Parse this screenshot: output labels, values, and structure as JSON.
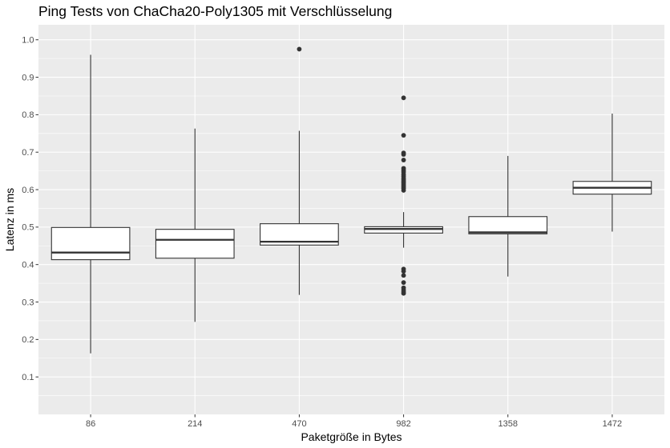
{
  "chart_data": {
    "type": "boxplot",
    "title": "Ping Tests von ChaCha20-Poly1305 mit Verschlüsselung",
    "xlabel": "Paketgröße in Bytes",
    "ylabel": "Latenz in ms",
    "ylim": [
      0.0,
      1.04
    ],
    "yticks": [
      0.1,
      0.2,
      0.3,
      0.4,
      0.5,
      0.6,
      0.7,
      0.8,
      0.9,
      1.0
    ],
    "ytick_labels": [
      "0.1",
      "0.2",
      "0.3",
      "0.4",
      "0.5",
      "0.6",
      "0.7",
      "0.8",
      "0.9",
      "1.0"
    ],
    "grid": true,
    "background": "#ebebeb",
    "box_fill": "#ffffff",
    "box_stroke": "#333333",
    "categories": [
      "86",
      "214",
      "470",
      "982",
      "1358",
      "1472"
    ],
    "boxes": [
      {
        "category": "86",
        "whisker_low": 0.163,
        "q1": 0.413,
        "median": 0.432,
        "q3": 0.499,
        "whisker_high": 0.96,
        "outliers": []
      },
      {
        "category": "214",
        "whisker_low": 0.247,
        "q1": 0.417,
        "median": 0.466,
        "q3": 0.494,
        "whisker_high": 0.763,
        "outliers": []
      },
      {
        "category": "470",
        "whisker_low": 0.319,
        "q1": 0.452,
        "median": 0.461,
        "q3": 0.509,
        "whisker_high": 0.757,
        "outliers": [
          0.975
        ]
      },
      {
        "category": "982",
        "whisker_low": 0.445,
        "q1": 0.484,
        "median": 0.495,
        "q3": 0.501,
        "whisker_high": 0.54,
        "outliers": [
          0.323,
          0.327,
          0.332,
          0.338,
          0.352,
          0.371,
          0.382,
          0.388,
          0.598,
          0.603,
          0.607,
          0.611,
          0.615,
          0.619,
          0.623,
          0.627,
          0.631,
          0.636,
          0.641,
          0.647,
          0.652,
          0.657,
          0.679,
          0.694,
          0.698,
          0.745,
          0.845
        ]
      },
      {
        "category": "1358",
        "whisker_low": 0.368,
        "q1": 0.482,
        "median": 0.486,
        "q3": 0.528,
        "whisker_high": 0.69,
        "outliers": []
      },
      {
        "category": "1472",
        "whisker_low": 0.488,
        "q1": 0.588,
        "median": 0.605,
        "q3": 0.622,
        "whisker_high": 0.803,
        "outliers": []
      }
    ]
  }
}
